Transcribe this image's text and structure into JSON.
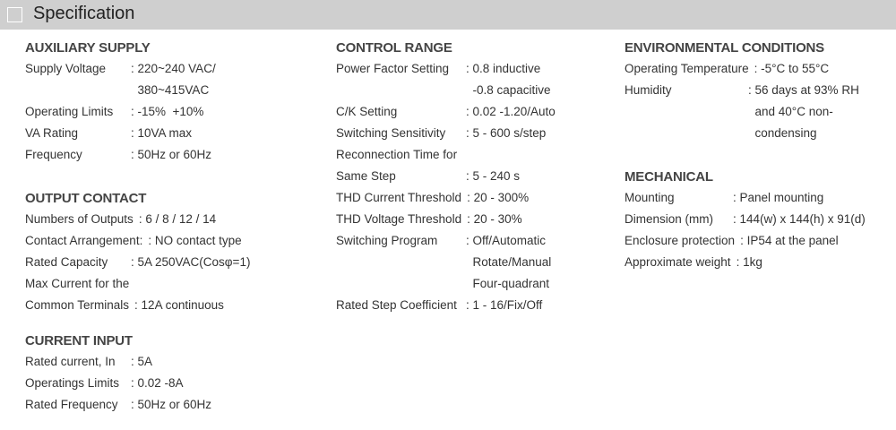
{
  "header": {
    "title": "Specification",
    "icon": "square-icon"
  },
  "sections": [
    {
      "title": "AUXILIARY SUPPLY",
      "rows": [
        {
          "label": "Supply Voltage",
          "value": [
            ": 220~240 VAC/",
            "  380~415VAC"
          ]
        },
        {
          "label": "Operating Limits",
          "value": [
            ": -15%  +10%"
          ]
        },
        {
          "label": "VA Rating",
          "value": [
            ": 10VA max"
          ]
        },
        {
          "label": "Frequency",
          "value": [
            ": 50Hz or 60Hz"
          ]
        }
      ]
    },
    {
      "title": "OUTPUT CONTACT",
      "rows": [
        {
          "label": "Numbers of Outputs",
          "value": [
            ": 6 / 8 / 12 / 14"
          ]
        },
        {
          "label": "Contact Arrangement:",
          "value": [
            ": NO contact type"
          ]
        },
        {
          "label": "Rated Capacity",
          "value": [
            ": 5A 250VAC(Cosφ=1)"
          ]
        },
        {
          "label": "Max Current for the",
          "value": [
            ""
          ]
        },
        {
          "label": "Common Terminals",
          "value": [
            ": 12A continuous"
          ]
        }
      ]
    },
    {
      "title": "CURRENT INPUT",
      "rows": [
        {
          "label": "Rated current, In",
          "value": [
            ": 5A"
          ]
        },
        {
          "label": "Operatings Limits",
          "value": [
            ": 0.02 -8A"
          ]
        },
        {
          "label": "Rated Frequency",
          "value": [
            ": 50Hz or 60Hz"
          ]
        }
      ]
    },
    {
      "title": "CONTROL RANGE",
      "rows": [
        {
          "label": "Power Factor Setting",
          "value": [
            ": 0.8 inductive",
            "  -0.8 capacitive"
          ]
        },
        {
          "label": "C/K Setting",
          "value": [
            ": 0.02 -1.20/Auto"
          ]
        },
        {
          "label": "Switching Sensitivity",
          "value": [
            ": 5 - 600 s/step"
          ]
        },
        {
          "label": "Reconnection Time for",
          "value": [
            ""
          ]
        },
        {
          "label": "Same Step",
          "value": [
            ": 5 - 240 s"
          ]
        },
        {
          "label": "THD Current Threshold",
          "value": [
            ": 20 - 300%"
          ]
        },
        {
          "label": "THD Voltage Threshold",
          "value": [
            ": 20 - 30%"
          ]
        },
        {
          "label": "Switching Program",
          "value": [
            ": Off/Automatic",
            "  Rotate/Manual",
            "  Four-quadrant"
          ]
        },
        {
          "label": "Rated Step Coefficient",
          "value": [
            ": 1 - 16/Fix/Off"
          ]
        }
      ]
    },
    {
      "title": "ENVIRONMENTAL CONDITIONS",
      "rows": [
        {
          "label": "Operating Temperature",
          "value": [
            ": -5°C to 55°C"
          ]
        },
        {
          "label": "Humidity",
          "value": [
            ": 56 days at 93% RH",
            "  and 40°C non-",
            "  condensing"
          ]
        }
      ]
    },
    {
      "title": "MECHANICAL",
      "rows": [
        {
          "label": "Mounting",
          "value": [
            ": Panel mounting"
          ]
        },
        {
          "label": "Dimension (mm)",
          "value": [
            ": 144(w) x 144(h) x 91(d)"
          ]
        },
        {
          "label": "Enclosure protection",
          "value": [
            ": IP54 at the panel"
          ]
        },
        {
          "label": "Approximate weight",
          "value": [
            ": 1kg"
          ]
        }
      ]
    }
  ]
}
